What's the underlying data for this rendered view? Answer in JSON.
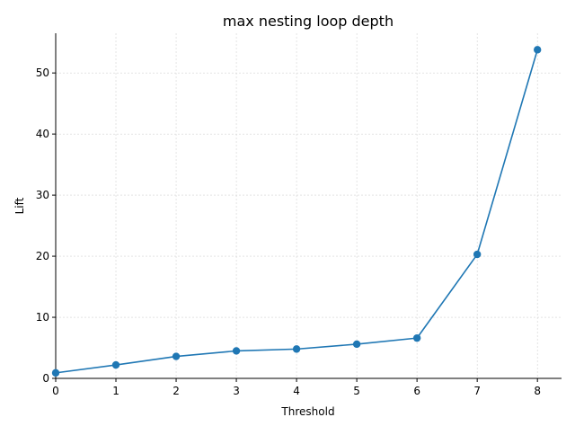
{
  "chart_data": {
    "type": "line",
    "title": "max nesting loop depth",
    "xlabel": "Threshold",
    "ylabel": "Lift",
    "x": [
      0,
      1,
      2,
      3,
      4,
      5,
      6,
      7,
      8
    ],
    "series": [
      {
        "values": [
          0.9,
          2.2,
          3.6,
          4.5,
          4.8,
          5.6,
          6.6,
          20.3,
          53.8
        ],
        "color": "#1f77b4",
        "marker": "circle"
      }
    ],
    "xlim": [
      0,
      8.4
    ],
    "ylim": [
      0,
      56.5
    ],
    "xticks": [
      "0",
      "1",
      "2",
      "3",
      "4",
      "5",
      "6",
      "7",
      "8"
    ],
    "yticks": [
      "0",
      "10",
      "20",
      "30",
      "40",
      "50"
    ],
    "grid": true,
    "grid_color": "#d3d3d3",
    "axis_color": "#000000"
  }
}
